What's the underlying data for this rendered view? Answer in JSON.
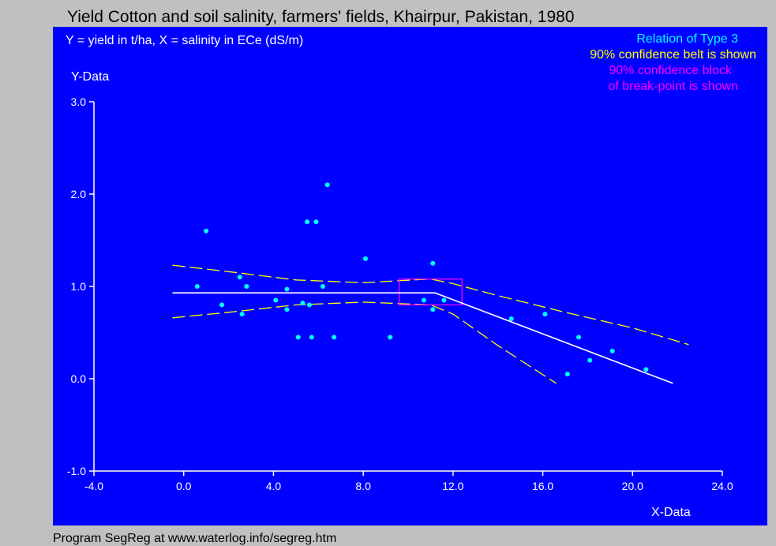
{
  "colors": {
    "background": "#c0c0c0",
    "plot": "#0000ff",
    "axis": "#ffffff",
    "points": "#00ffff",
    "belt": "#ffff00",
    "block": "#ff00ff",
    "fit": "#ffffff"
  },
  "chart_data": {
    "type": "scatter",
    "title": "Yield Cotton and soil salinity, farmers' fields, Khairpur, Pakistan, 1980",
    "subtitle": "Y = yield in t/ha, X = salinity in ECe (dS/m)",
    "xlabel": "X-Data",
    "ylabel": "Y-Data",
    "xlim": [
      -4,
      24
    ],
    "ylim": [
      -1,
      3
    ],
    "x_ticks": [
      "-4.0",
      "0.0",
      "4.0",
      "8.0",
      "12.0",
      "16.0",
      "20.0",
      "24.0"
    ],
    "y_ticks": [
      "-1.0",
      "0.0",
      "1.0",
      "2.0",
      "3.0"
    ],
    "legend": [
      {
        "text": "Relation of Type 3",
        "color": "#00ffff"
      },
      {
        "text": "90% confidence belt is shown",
        "color": "#ffff00"
      },
      {
        "text": "90% confidence block",
        "color": "#ff00ff"
      },
      {
        "text": "of break-point is shown",
        "color": "#ff00ff"
      }
    ],
    "points": [
      {
        "x": 0.6,
        "y": 1.0
      },
      {
        "x": 1.0,
        "y": 1.6
      },
      {
        "x": 1.7,
        "y": 0.8
      },
      {
        "x": 2.5,
        "y": 1.1
      },
      {
        "x": 2.6,
        "y": 0.7
      },
      {
        "x": 2.8,
        "y": 1.0
      },
      {
        "x": 4.1,
        "y": 0.85
      },
      {
        "x": 4.6,
        "y": 0.97
      },
      {
        "x": 4.6,
        "y": 0.75
      },
      {
        "x": 5.1,
        "y": 0.45
      },
      {
        "x": 5.3,
        "y": 0.82
      },
      {
        "x": 5.5,
        "y": 1.7
      },
      {
        "x": 5.6,
        "y": 0.8
      },
      {
        "x": 5.7,
        "y": 0.45
      },
      {
        "x": 5.9,
        "y": 1.7
      },
      {
        "x": 6.2,
        "y": 1.0
      },
      {
        "x": 6.4,
        "y": 2.1
      },
      {
        "x": 6.7,
        "y": 0.45
      },
      {
        "x": 8.1,
        "y": 1.3
      },
      {
        "x": 9.2,
        "y": 0.45
      },
      {
        "x": 10.7,
        "y": 0.85
      },
      {
        "x": 11.1,
        "y": 1.25
      },
      {
        "x": 11.1,
        "y": 0.75
      },
      {
        "x": 11.6,
        "y": 0.85
      },
      {
        "x": 14.6,
        "y": 0.65
      },
      {
        "x": 16.1,
        "y": 0.7
      },
      {
        "x": 17.1,
        "y": 0.05
      },
      {
        "x": 17.6,
        "y": 0.45
      },
      {
        "x": 18.1,
        "y": 0.2
      },
      {
        "x": 19.1,
        "y": 0.3
      },
      {
        "x": 20.6,
        "y": 0.1
      }
    ],
    "fit_line": [
      {
        "x": -0.5,
        "y": 0.93
      },
      {
        "x": 11.2,
        "y": 0.93
      },
      {
        "x": 21.8,
        "y": -0.05
      }
    ],
    "belt_upper": [
      {
        "x": -0.5,
        "y": 1.23
      },
      {
        "x": 2.0,
        "y": 1.16
      },
      {
        "x": 5.0,
        "y": 1.07
      },
      {
        "x": 8.0,
        "y": 1.04
      },
      {
        "x": 11.0,
        "y": 1.08
      },
      {
        "x": 12.0,
        "y": 1.03
      },
      {
        "x": 14.0,
        "y": 0.9
      },
      {
        "x": 17.0,
        "y": 0.72
      },
      {
        "x": 20.0,
        "y": 0.55
      },
      {
        "x": 22.5,
        "y": 0.37
      }
    ],
    "belt_lower": [
      {
        "x": -0.5,
        "y": 0.66
      },
      {
        "x": 2.0,
        "y": 0.72
      },
      {
        "x": 5.0,
        "y": 0.8
      },
      {
        "x": 8.0,
        "y": 0.83
      },
      {
        "x": 11.0,
        "y": 0.8
      },
      {
        "x": 12.0,
        "y": 0.7
      },
      {
        "x": 14.0,
        "y": 0.36
      },
      {
        "x": 16.6,
        "y": -0.05
      }
    ],
    "break_block": {
      "x_min": 9.6,
      "x_max": 12.4,
      "y_min": 0.8,
      "y_max": 1.08
    }
  },
  "footer": "Program SegReg at www.waterlog.info/segreg.htm"
}
